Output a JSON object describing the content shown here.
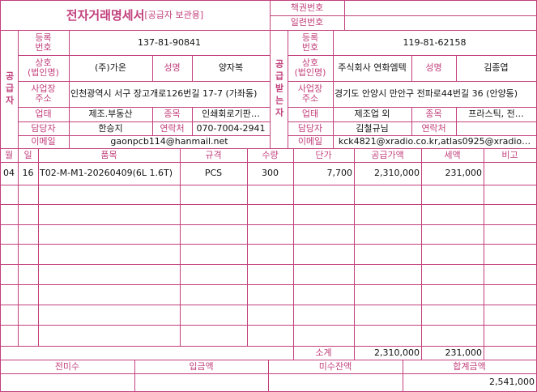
{
  "header": {
    "title": "전자거래명세서",
    "subtitle": "[공급자 보관용]",
    "book_number_label": "책권번호",
    "serial_number_label": "일련번호"
  },
  "supplier": {
    "side_label": "공급자",
    "reg_no_label": "등록\n번호",
    "reg_no": "137-81-90841",
    "company_label": "상호\n(법인명)",
    "company": "(주)가온",
    "ceo_label": "성명",
    "ceo": "양자복",
    "address_label": "사업장\n주소",
    "address": "인천광역시 서구 장고개로126번길 17-7 (가좌동)",
    "business_type_label": "업태",
    "business_type": "제조.부동산",
    "business_item_label": "종목",
    "business_item": "인쇄회로기판…",
    "contact_label": "담당자",
    "contact": "한승지",
    "phone_label": "연락처",
    "phone": "070-7004-2941",
    "email_label": "이메일",
    "email": "gaonpcb114@hanmail.net"
  },
  "recipient": {
    "side_label": "공급받는자",
    "reg_no_label": "등록\n번호",
    "reg_no": "119-81-62158",
    "company_label": "상호\n(법인명)",
    "company": "주식회사 연화엠텍",
    "ceo_label": "성명",
    "ceo": "김종엽",
    "address_label": "사업장\n주소",
    "address": "경기도 안양시 만안구 전파로44번길 36 (안양동)",
    "business_type_label": "업태",
    "business_type": "제조업 외",
    "business_item_label": "종목",
    "business_item": "프라스틱, 전…",
    "contact_label": "담당자",
    "contact": "김철규님",
    "phone_label": "연락처",
    "email_label": "이메일",
    "email": "kck4821@xradio.co.kr,atlas0925@xradio…"
  },
  "table": {
    "columns": [
      "월",
      "일",
      "품목",
      "규격",
      "수량",
      "단가",
      "공급가액",
      "세액",
      "비고"
    ],
    "rows": [
      [
        "04",
        "16",
        "T02-M-M1-20260409(6L 1.6T)",
        "PCS",
        "300",
        "7,700",
        "2,310,000",
        "231,000"
      ]
    ],
    "subtotal_label": "소계",
    "subtotal_supply": "2,310,000",
    "subtotal_tax": "231,000"
  },
  "summary": {
    "labels": [
      "전미수",
      "입금액",
      "미수잔액",
      "합계금액"
    ],
    "total": "2,541,000"
  }
}
